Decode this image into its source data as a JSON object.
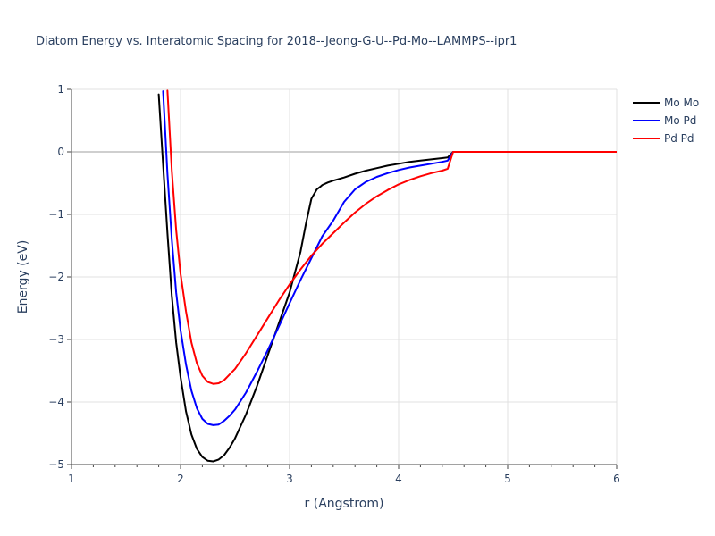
{
  "chart_data": {
    "type": "line",
    "title": "Diatom Energy vs. Interatomic Spacing for 2018--Jeong-G-U--Pd-Mo--LAMMPS--ipr1",
    "xlabel": "r (Angstrom)",
    "ylabel": "Energy (eV)",
    "xlim": [
      1,
      6
    ],
    "ylim": [
      -5,
      1
    ],
    "x_ticks": [
      1,
      2,
      3,
      4,
      5,
      6
    ],
    "x_tick_labels": [
      "1",
      "2",
      "3",
      "4",
      "5",
      "6"
    ],
    "y_ticks": [
      -5,
      -4,
      -3,
      -2,
      -1,
      0,
      1
    ],
    "y_tick_labels": [
      "−5",
      "−4",
      "−3",
      "−2",
      "−1",
      "0",
      "1"
    ],
    "grid": true,
    "legend_position": "top-right",
    "series": [
      {
        "name": "Mo Mo",
        "color": "#000000",
        "x": [
          1.8,
          1.84,
          1.88,
          1.92,
          1.96,
          2.0,
          2.05,
          2.1,
          2.15,
          2.2,
          2.25,
          2.3,
          2.35,
          2.4,
          2.45,
          2.5,
          2.6,
          2.7,
          2.8,
          2.9,
          3.0,
          3.1,
          3.15,
          3.2,
          3.25,
          3.28,
          3.3,
          3.35,
          3.4,
          3.5,
          3.6,
          3.7,
          3.8,
          3.9,
          4.0,
          4.1,
          4.2,
          4.3,
          4.4,
          4.45,
          4.5,
          4.6,
          5.0,
          5.5,
          6.0
        ],
        "y": [
          0.92,
          -0.2,
          -1.3,
          -2.3,
          -3.05,
          -3.6,
          -4.15,
          -4.52,
          -4.75,
          -4.88,
          -4.94,
          -4.95,
          -4.92,
          -4.85,
          -4.73,
          -4.58,
          -4.2,
          -3.75,
          -3.25,
          -2.75,
          -2.25,
          -1.6,
          -1.15,
          -0.75,
          -0.6,
          -0.56,
          -0.53,
          -0.49,
          -0.46,
          -0.41,
          -0.35,
          -0.3,
          -0.26,
          -0.22,
          -0.19,
          -0.16,
          -0.14,
          -0.12,
          -0.1,
          -0.09,
          0.0,
          0.0,
          0.0,
          0.0,
          0.0
        ]
      },
      {
        "name": "Mo Pd",
        "color": "#0000ff",
        "x": [
          1.84,
          1.88,
          1.92,
          1.96,
          2.0,
          2.05,
          2.1,
          2.15,
          2.2,
          2.25,
          2.3,
          2.35,
          2.4,
          2.45,
          2.5,
          2.6,
          2.7,
          2.8,
          2.9,
          3.0,
          3.1,
          3.2,
          3.3,
          3.4,
          3.5,
          3.6,
          3.7,
          3.8,
          3.9,
          4.0,
          4.1,
          4.2,
          4.3,
          4.4,
          4.45,
          4.5,
          4.6,
          5.0,
          5.5,
          6.0
        ],
        "y": [
          0.97,
          -0.35,
          -1.4,
          -2.25,
          -2.85,
          -3.4,
          -3.82,
          -4.1,
          -4.27,
          -4.35,
          -4.37,
          -4.36,
          -4.3,
          -4.22,
          -4.12,
          -3.85,
          -3.52,
          -3.17,
          -2.8,
          -2.42,
          -2.05,
          -1.7,
          -1.35,
          -1.1,
          -0.8,
          -0.6,
          -0.48,
          -0.4,
          -0.34,
          -0.29,
          -0.25,
          -0.22,
          -0.19,
          -0.16,
          -0.14,
          0.0,
          0.0,
          0.0,
          0.0,
          0.0
        ]
      },
      {
        "name": "Pd Pd",
        "color": "#ff0000",
        "x": [
          1.88,
          1.92,
          1.96,
          2.0,
          2.05,
          2.1,
          2.15,
          2.2,
          2.25,
          2.3,
          2.35,
          2.4,
          2.45,
          2.5,
          2.6,
          2.7,
          2.8,
          2.9,
          3.0,
          3.1,
          3.2,
          3.3,
          3.4,
          3.5,
          3.6,
          3.7,
          3.8,
          3.9,
          4.0,
          4.1,
          4.2,
          4.3,
          4.4,
          4.45,
          4.5,
          4.6,
          5.0,
          5.5,
          6.0
        ],
        "y": [
          0.98,
          -0.3,
          -1.25,
          -1.95,
          -2.55,
          -3.05,
          -3.38,
          -3.58,
          -3.68,
          -3.71,
          -3.7,
          -3.65,
          -3.56,
          -3.47,
          -3.22,
          -2.94,
          -2.66,
          -2.38,
          -2.12,
          -1.88,
          -1.66,
          -1.47,
          -1.3,
          -1.13,
          -0.97,
          -0.83,
          -0.71,
          -0.61,
          -0.52,
          -0.45,
          -0.39,
          -0.34,
          -0.3,
          -0.27,
          0.0,
          0.0,
          0.0,
          0.0,
          0.0
        ]
      }
    ]
  }
}
